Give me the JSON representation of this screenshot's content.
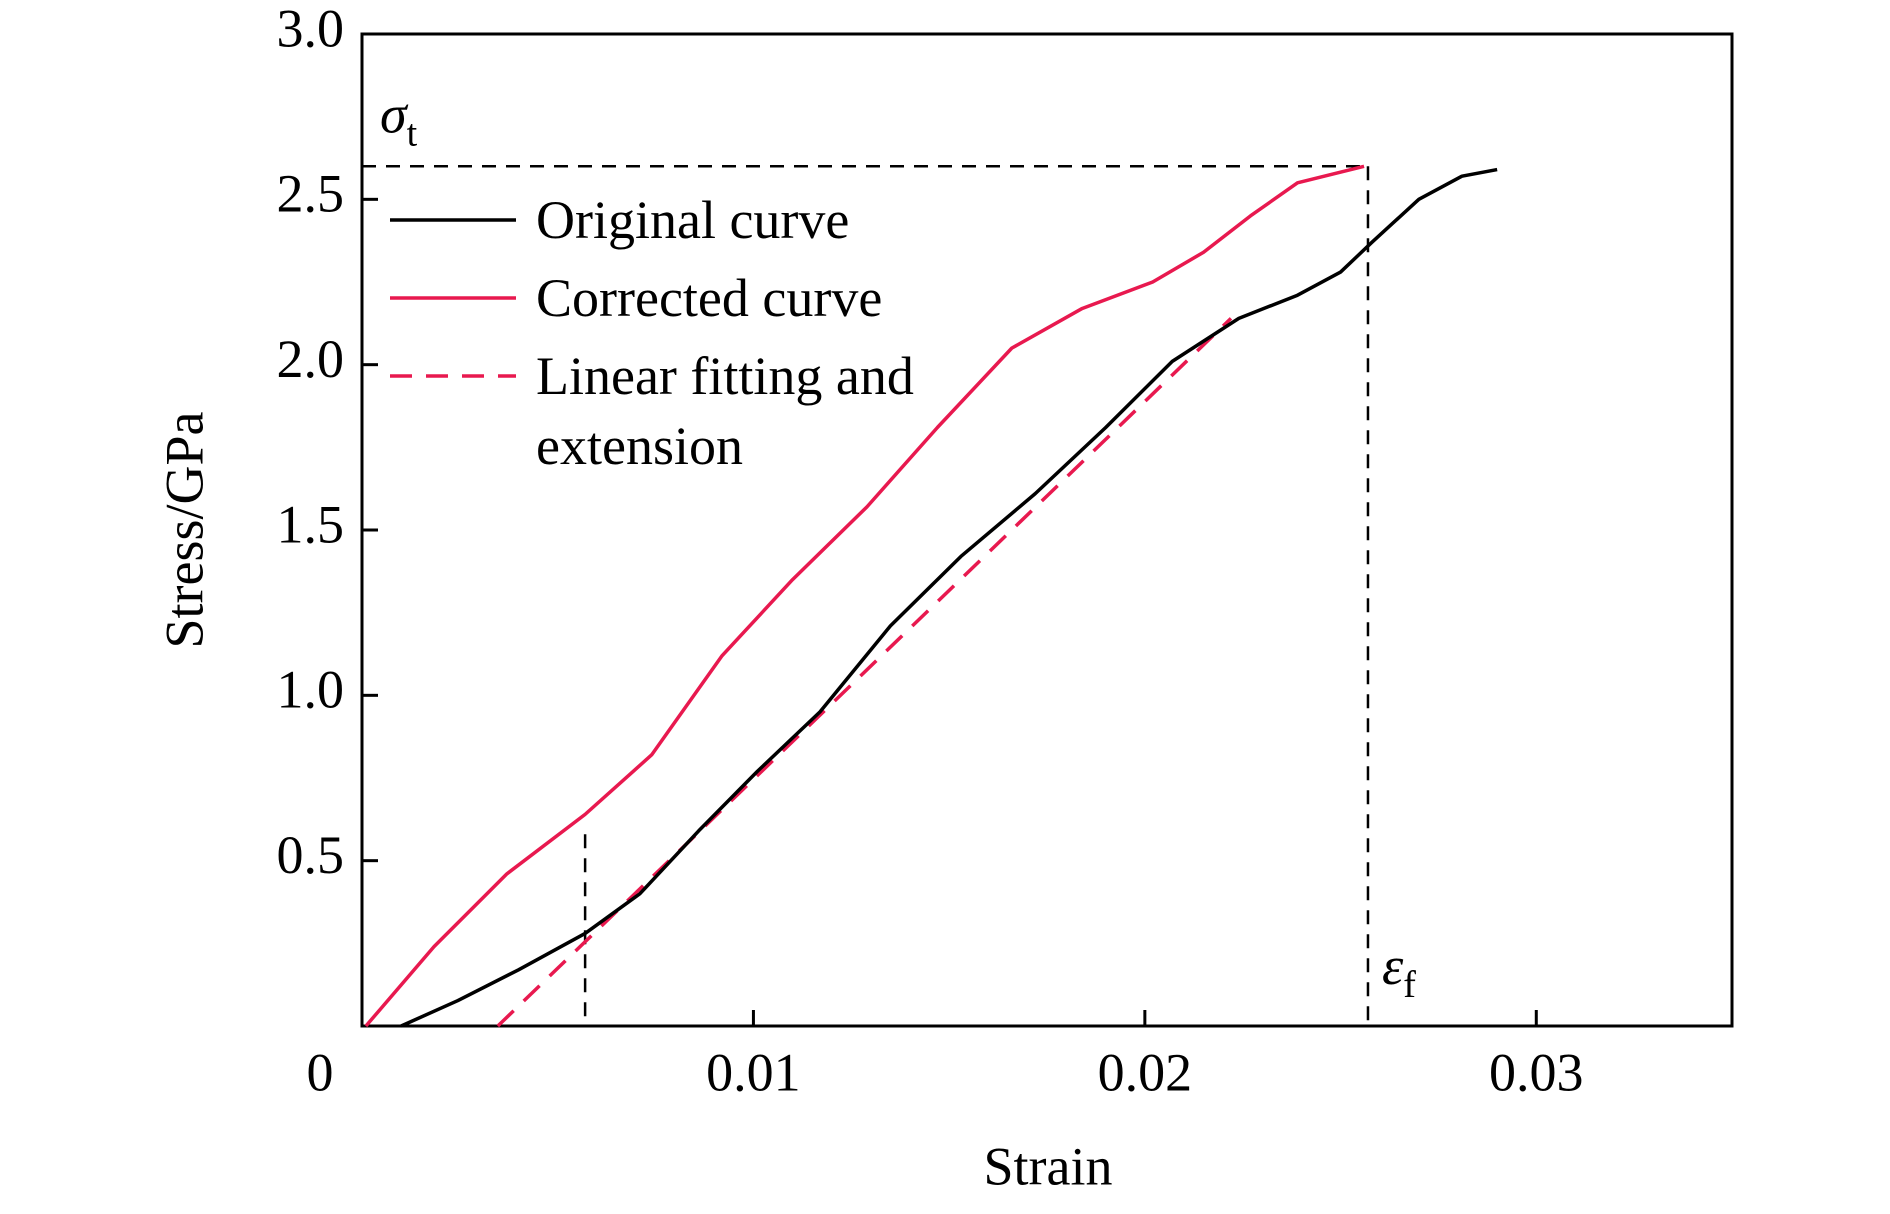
{
  "chart_data": {
    "type": "line",
    "x_label": "Strain",
    "y_label": "Stress/GPa",
    "xlim": [
      0,
      0.035
    ],
    "ylim": [
      0,
      3
    ],
    "xticks": [
      0,
      0.01,
      0.02,
      0.03
    ],
    "yticks": [
      0.5,
      {
        "value": 1,
        "label": "1.0"
      },
      1.5,
      {
        "value": 2,
        "label": "2.0"
      },
      2.5,
      {
        "value": 3,
        "label": "3.0"
      }
    ],
    "legend": "upper-left",
    "series": [
      {
        "name": "Original curve",
        "color": "#000000",
        "dashed": false,
        "x": [
          0.001,
          0.00245,
          0.004,
          0.0057,
          0.0071,
          0.0086,
          0.0101,
          0.0117,
          0.0135,
          0.0153,
          0.0172,
          0.019,
          0.0207,
          0.0224,
          0.0239,
          0.025,
          0.0258,
          0.027,
          0.0281,
          0.029
        ],
        "values": [
          0,
          0.077,
          0.17,
          0.28,
          0.4,
          0.59,
          0.77,
          0.95,
          1.21,
          1.42,
          1.61,
          1.81,
          2.01,
          2.14,
          2.21,
          2.28,
          2.37,
          2.5,
          2.57,
          2.59
        ]
      },
      {
        "name": "Corrected curve",
        "color": "#e8194f",
        "dashed": false,
        "x": [
          0.0001,
          0.00184,
          0.0037,
          0.0057,
          0.0074,
          0.0092,
          0.011,
          0.0129,
          0.0147,
          0.0166,
          0.0184,
          0.0202,
          0.0215,
          0.0227,
          0.0239,
          0.0256
        ],
        "values": [
          0,
          0.24,
          0.46,
          0.64,
          0.82,
          1.12,
          1.35,
          1.57,
          1.81,
          2.05,
          2.17,
          2.25,
          2.34,
          2.45,
          2.55,
          2.6
        ]
      },
      {
        "name": "Linear fitting and extension",
        "color": "#e8194f",
        "dashed": true,
        "x": [
          0.00347,
          0.0222
        ],
        "values": [
          0,
          2.14
        ]
      }
    ],
    "tensile_strength": 2.6,
    "fracture_strain": 0.0257,
    "fit_start": {
      "x": 0.0057,
      "y": 0.58
    },
    "annotations": [
      {
        "text": "σ",
        "subscript": "t"
      },
      {
        "text": "ε",
        "subscript": "f"
      }
    ]
  }
}
